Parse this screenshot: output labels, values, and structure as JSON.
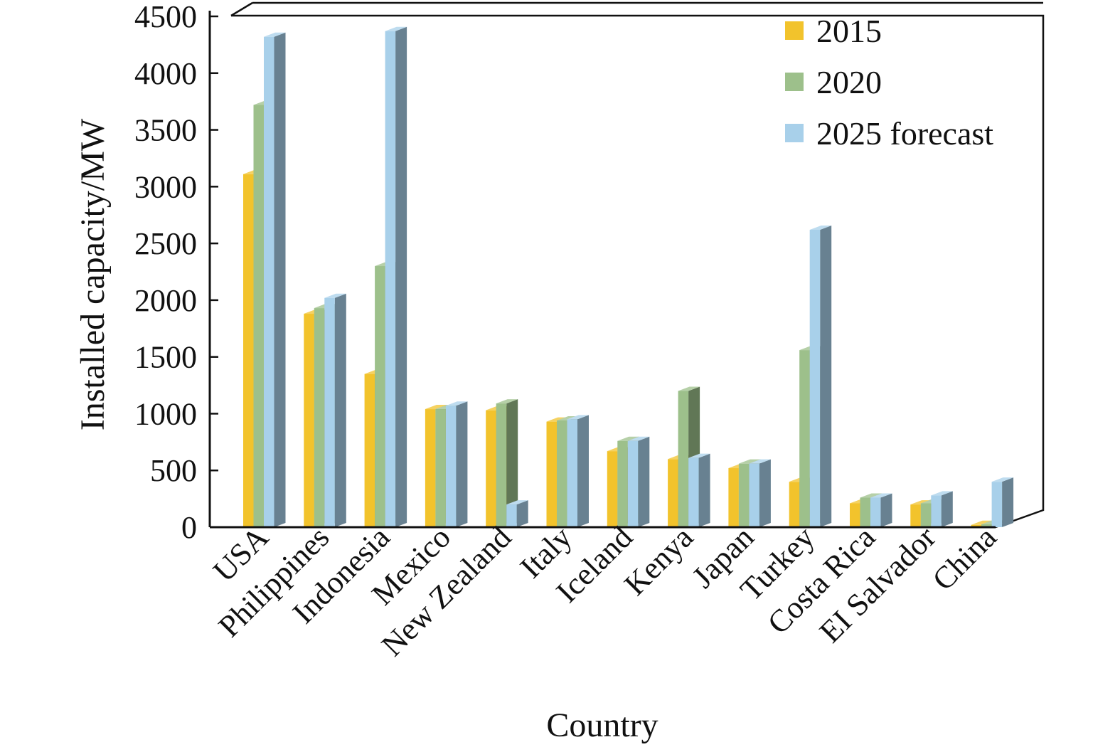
{
  "chart_data": {
    "type": "bar",
    "xlabel": "Country",
    "ylabel": "Installed capacity/MW",
    "ylim": [
      0,
      4500
    ],
    "yticks": [
      0,
      500,
      1000,
      1500,
      2000,
      2500,
      3000,
      3500,
      4000,
      4500
    ],
    "categories": [
      "USA",
      "Philippines",
      "Indonesia",
      "Mexico",
      "New Zealand",
      "Italy",
      "Iceland",
      "Kenya",
      "Japan",
      "Turkey",
      "Costa Rica",
      "EI Salvador",
      "China"
    ],
    "series": [
      {
        "name": "2015",
        "color": "#f2c32c",
        "values": [
          3110,
          1880,
          1350,
          1040,
          1030,
          930,
          670,
          600,
          520,
          400,
          210,
          200,
          20
        ]
      },
      {
        "name": "2020",
        "color": "#9dc08b",
        "values": [
          3720,
          1930,
          2300,
          1040,
          1090,
          940,
          760,
          1200,
          560,
          1560,
          260,
          210,
          25
        ]
      },
      {
        "name": "2025 forecast",
        "color": "#a8d0ea",
        "values": [
          4320,
          2020,
          4370,
          1070,
          200,
          950,
          760,
          610,
          560,
          2620,
          260,
          280,
          400
        ]
      }
    ],
    "legend": "top-right",
    "grid": false,
    "style": "3d-bars"
  }
}
